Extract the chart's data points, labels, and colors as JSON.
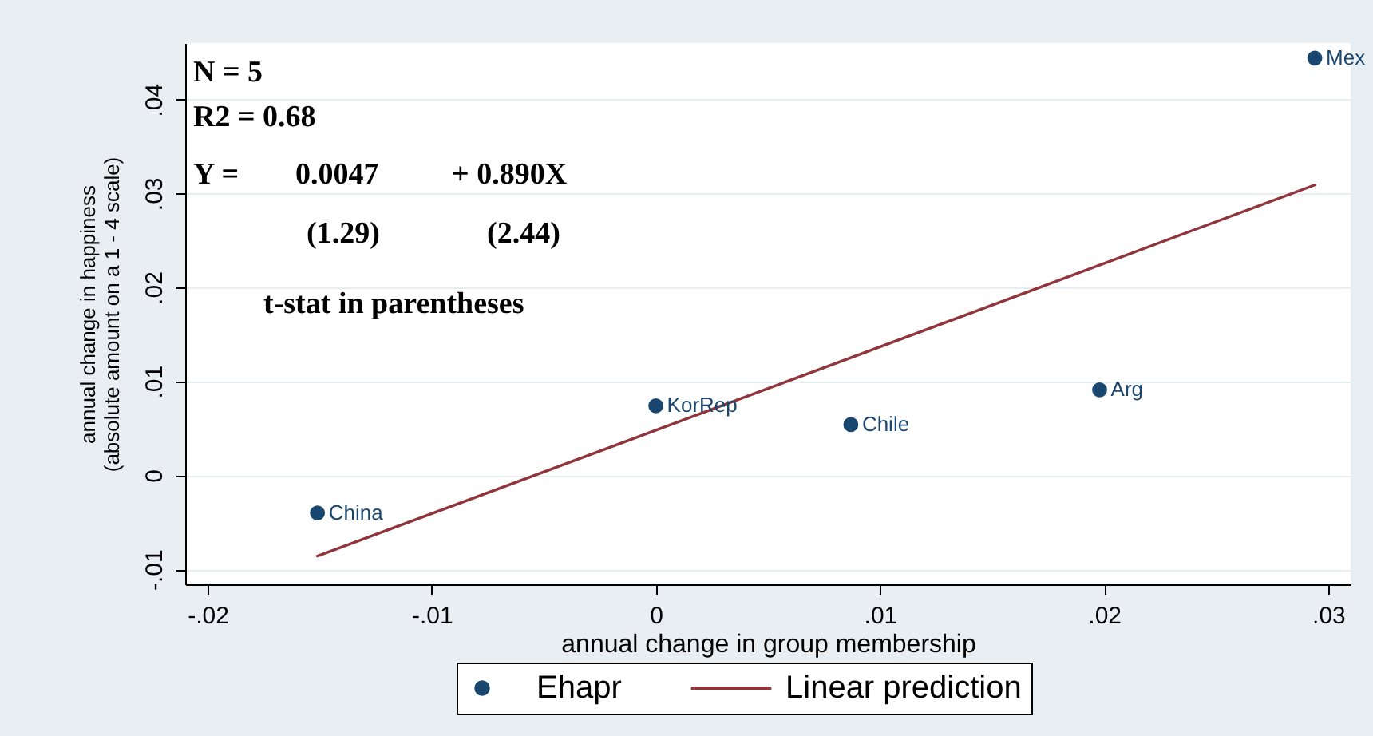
{
  "chart_data": {
    "type": "scatter",
    "xlabel": "annual change in group membership",
    "ylabel": "annual change in happiness\n(absolute amount on a 1 - 4 scale)",
    "series": [
      {
        "name": "Ehapr",
        "marker": "circle",
        "color": "#1a476f",
        "x": [
          -0.0151,
          0,
          0.0087,
          0.0198,
          0.0294
        ],
        "values": [
          -0.004,
          0.0074,
          0.0054,
          0.0091,
          0.0444
        ]
      },
      {
        "name": "Linear prediction",
        "type": "line",
        "marker": "none",
        "line_style": "solid",
        "color": "#90353b",
        "x": [
          -0.0151,
          0.0294
        ],
        "values": [
          -0.0086,
          0.0309
        ]
      }
    ],
    "xlim": [
      -0.021,
      0.031
    ],
    "ylim": [
      -0.0116,
      0.046
    ],
    "xticks": [
      {
        "value": -0.02,
        "label": "-.02"
      },
      {
        "value": -0.01,
        "label": "-.01"
      },
      0,
      {
        "value": 0.01,
        "label": ".01"
      },
      {
        "value": 0.02,
        "label": ".02"
      },
      {
        "value": 0.03,
        "label": ".03"
      }
    ],
    "yticks": [
      {
        "value": -0.01,
        "label": "-.01"
      },
      0,
      {
        "value": 0.01,
        "label": ".01"
      },
      {
        "value": 0.02,
        "label": ".02"
      },
      {
        "value": 0.03,
        "label": ".03"
      },
      {
        "value": 0.04,
        "label": ".04"
      }
    ],
    "grid": "y",
    "legend": "bottom",
    "annotations": [
      "N = 5",
      "R2 = 0.68",
      "Y =",
      "0.0047",
      "+ 0.890X",
      "(1.29)",
      "(2.44)",
      "t-stat in parentheses",
      {
        "text": "China",
        "x": -0.0151,
        "y": -0.004
      },
      {
        "text": "KorRep",
        "x": 0,
        "y": 0.0074
      },
      {
        "text": "Chile",
        "x": 0.0087,
        "y": 0.0054
      },
      {
        "text": "Arg",
        "x": 0.0198,
        "y": 0.0091
      },
      {
        "text": "Mex",
        "x": 0.0294,
        "y": 0.0444
      }
    ]
  }
}
